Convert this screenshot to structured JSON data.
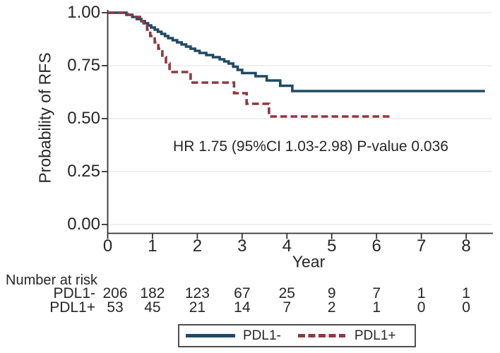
{
  "figure": {
    "kind": "kaplan-meier-survival-plot"
  },
  "chart_data": {
    "type": "line",
    "subtype": "kaplan-meier-step",
    "title": "",
    "xlabel": "Year",
    "ylabel": "Probability of RFS",
    "xlim": [
      0,
      8.6
    ],
    "ylim": [
      0,
      1.0
    ],
    "grid": "horizontal-light",
    "legend_position": "bottom-center",
    "annotation": "HR 1.75 (95%CI 1.03-2.98) P-value 0.036",
    "xticks": [
      {
        "v": 0,
        "label": "0"
      },
      {
        "v": 1,
        "label": "1"
      },
      {
        "v": 2,
        "label": "2"
      },
      {
        "v": 3,
        "label": "3"
      },
      {
        "v": 4,
        "label": "4"
      },
      {
        "v": 5,
        "label": "5"
      },
      {
        "v": 6,
        "label": "6"
      },
      {
        "v": 7,
        "label": "7"
      },
      {
        "v": 8,
        "label": "8"
      }
    ],
    "yticks": [
      {
        "v": 1.0,
        "label": "1.00"
      },
      {
        "v": 0.75,
        "label": "0.75"
      },
      {
        "v": 0.5,
        "label": "0.50"
      },
      {
        "v": 0.25,
        "label": "0.25"
      },
      {
        "v": 0.0,
        "label": "0.00"
      }
    ],
    "series": [
      {
        "name": "PDL1-",
        "color": "#1f4a66",
        "style": "solid",
        "final_value": 0.63,
        "points": [
          [
            0,
            1
          ],
          [
            0.42,
            1
          ],
          [
            0.42,
            0.99
          ],
          [
            0.55,
            0.99
          ],
          [
            0.55,
            0.98
          ],
          [
            0.65,
            0.98
          ],
          [
            0.65,
            0.97
          ],
          [
            0.75,
            0.97
          ],
          [
            0.75,
            0.96
          ],
          [
            0.83,
            0.96
          ],
          [
            0.83,
            0.95
          ],
          [
            0.9,
            0.95
          ],
          [
            0.9,
            0.94
          ],
          [
            0.97,
            0.94
          ],
          [
            0.97,
            0.93
          ],
          [
            1.05,
            0.93
          ],
          [
            1.05,
            0.92
          ],
          [
            1.12,
            0.92
          ],
          [
            1.12,
            0.91
          ],
          [
            1.2,
            0.91
          ],
          [
            1.2,
            0.9
          ],
          [
            1.28,
            0.9
          ],
          [
            1.28,
            0.89
          ],
          [
            1.35,
            0.89
          ],
          [
            1.35,
            0.88
          ],
          [
            1.45,
            0.88
          ],
          [
            1.45,
            0.87
          ],
          [
            1.55,
            0.87
          ],
          [
            1.55,
            0.86
          ],
          [
            1.65,
            0.86
          ],
          [
            1.65,
            0.85
          ],
          [
            1.75,
            0.85
          ],
          [
            1.75,
            0.84
          ],
          [
            1.85,
            0.84
          ],
          [
            1.85,
            0.83
          ],
          [
            1.95,
            0.83
          ],
          [
            1.95,
            0.82
          ],
          [
            2.05,
            0.82
          ],
          [
            2.05,
            0.81
          ],
          [
            2.2,
            0.81
          ],
          [
            2.2,
            0.8
          ],
          [
            2.35,
            0.8
          ],
          [
            2.35,
            0.79
          ],
          [
            2.5,
            0.79
          ],
          [
            2.5,
            0.78
          ],
          [
            2.6,
            0.78
          ],
          [
            2.6,
            0.77
          ],
          [
            2.7,
            0.77
          ],
          [
            2.7,
            0.76
          ],
          [
            2.8,
            0.76
          ],
          [
            2.8,
            0.745
          ],
          [
            2.9,
            0.745
          ],
          [
            2.9,
            0.73
          ],
          [
            3.0,
            0.73
          ],
          [
            3.0,
            0.715
          ],
          [
            3.3,
            0.715
          ],
          [
            3.3,
            0.7
          ],
          [
            3.55,
            0.7
          ],
          [
            3.55,
            0.68
          ],
          [
            3.85,
            0.68
          ],
          [
            3.85,
            0.655
          ],
          [
            4.12,
            0.655
          ],
          [
            4.12,
            0.63
          ],
          [
            8.42,
            0.63
          ]
        ]
      },
      {
        "name": "PDL1+",
        "color": "#8f3842",
        "style": "dashed",
        "final_value": 0.51,
        "points": [
          [
            0,
            1
          ],
          [
            0.45,
            1
          ],
          [
            0.45,
            0.99
          ],
          [
            0.62,
            0.99
          ],
          [
            0.62,
            0.98
          ],
          [
            0.72,
            0.98
          ],
          [
            0.72,
            0.96
          ],
          [
            0.8,
            0.96
          ],
          [
            0.8,
            0.94
          ],
          [
            0.88,
            0.94
          ],
          [
            0.88,
            0.92
          ],
          [
            0.95,
            0.92
          ],
          [
            0.95,
            0.89
          ],
          [
            1.05,
            0.89
          ],
          [
            1.05,
            0.86
          ],
          [
            1.13,
            0.86
          ],
          [
            1.13,
            0.83
          ],
          [
            1.22,
            0.83
          ],
          [
            1.22,
            0.79
          ],
          [
            1.3,
            0.79
          ],
          [
            1.3,
            0.76
          ],
          [
            1.38,
            0.76
          ],
          [
            1.38,
            0.72
          ],
          [
            1.85,
            0.72
          ],
          [
            1.85,
            0.67
          ],
          [
            2.82,
            0.67
          ],
          [
            2.82,
            0.62
          ],
          [
            3.1,
            0.62
          ],
          [
            3.1,
            0.57
          ],
          [
            3.6,
            0.57
          ],
          [
            3.6,
            0.51
          ],
          [
            6.3,
            0.51
          ]
        ]
      }
    ],
    "number_at_risk": {
      "heading": "Number at risk",
      "time_points": [
        0,
        1,
        2,
        3,
        4,
        5,
        6,
        7,
        8
      ],
      "rows": [
        {
          "label": "PDL1-",
          "values": [
            "206",
            "182",
            "123",
            "67",
            "25",
            "9",
            "7",
            "1",
            "1"
          ]
        },
        {
          "label": "PDL1+",
          "values": [
            "53",
            "45",
            "21",
            "14",
            "7",
            "2",
            "1",
            "0",
            "0"
          ]
        }
      ]
    },
    "legend": {
      "entries": [
        {
          "label": "PDL1-",
          "style": "solid",
          "color": "#1f4a66"
        },
        {
          "label": "PDL1+",
          "style": "dashed",
          "color": "#8f3842"
        }
      ]
    },
    "style_colors": {
      "axis": "#333333",
      "gridline": "#ececec",
      "text": "#262626",
      "legend_border": "#4f4f4f"
    }
  }
}
